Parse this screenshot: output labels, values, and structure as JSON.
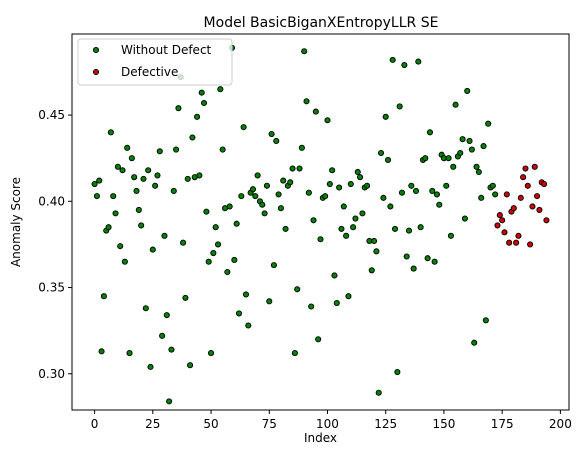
{
  "chart_data": {
    "type": "scatter",
    "title": "Model BasicBiganXEntropyLLR SE",
    "xlabel": "Index",
    "ylabel": "Anomaly Score",
    "xlim": [
      -9.7,
      203.7
    ],
    "ylim": [
      0.279,
      0.497
    ],
    "xticks": [
      0,
      25,
      50,
      75,
      100,
      125,
      150,
      175,
      200
    ],
    "yticks": [
      0.3,
      0.35,
      0.4,
      0.45
    ],
    "xtick_labels": [
      "0",
      "25",
      "50",
      "75",
      "100",
      "125",
      "150",
      "175",
      "200"
    ],
    "ytick_labels": [
      "0.30",
      "0.35",
      "0.40",
      "0.45"
    ],
    "grid": false,
    "legend_position": "top-left",
    "series": [
      {
        "name": "Without Defect",
        "color": "#008000",
        "points": [
          [
            0,
            0.41
          ],
          [
            1,
            0.403
          ],
          [
            2,
            0.412
          ],
          [
            3,
            0.313
          ],
          [
            4,
            0.345
          ],
          [
            5,
            0.383
          ],
          [
            6,
            0.385
          ],
          [
            7,
            0.44
          ],
          [
            8,
            0.403
          ],
          [
            9,
            0.393
          ],
          [
            10,
            0.42
          ],
          [
            11,
            0.374
          ],
          [
            12,
            0.418
          ],
          [
            13,
            0.365
          ],
          [
            14,
            0.431
          ],
          [
            15,
            0.312
          ],
          [
            16,
            0.425
          ],
          [
            17,
            0.414
          ],
          [
            18,
            0.406
          ],
          [
            19,
            0.395
          ],
          [
            20,
            0.386
          ],
          [
            21,
            0.413
          ],
          [
            22,
            0.338
          ],
          [
            23,
            0.418
          ],
          [
            24,
            0.304
          ],
          [
            25,
            0.372
          ],
          [
            26,
            0.409
          ],
          [
            27,
            0.415
          ],
          [
            28,
            0.429
          ],
          [
            29,
            0.322
          ],
          [
            30,
            0.38
          ],
          [
            31,
            0.334
          ],
          [
            32,
            0.284
          ],
          [
            33,
            0.314
          ],
          [
            34,
            0.406
          ],
          [
            35,
            0.43
          ],
          [
            36,
            0.454
          ],
          [
            37,
            0.472
          ],
          [
            38,
            0.376
          ],
          [
            39,
            0.344
          ],
          [
            40,
            0.413
          ],
          [
            41,
            0.305
          ],
          [
            42,
            0.437
          ],
          [
            43,
            0.414
          ],
          [
            44,
            0.449
          ],
          [
            45,
            0.415
          ],
          [
            46,
            0.463
          ],
          [
            47,
            0.457
          ],
          [
            48,
            0.394
          ],
          [
            49,
            0.365
          ],
          [
            50,
            0.312
          ],
          [
            51,
            0.37
          ],
          [
            52,
            0.385
          ],
          [
            53,
            0.375
          ],
          [
            54,
            0.465
          ],
          [
            55,
            0.43
          ],
          [
            56,
            0.396
          ],
          [
            57,
            0.359
          ],
          [
            58,
            0.397
          ],
          [
            59,
            0.489
          ],
          [
            60,
            0.366
          ],
          [
            61,
            0.387
          ],
          [
            62,
            0.335
          ],
          [
            63,
            0.403
          ],
          [
            64,
            0.443
          ],
          [
            65,
            0.346
          ],
          [
            66,
            0.328
          ],
          [
            67,
            0.405
          ],
          [
            68,
            0.407
          ],
          [
            69,
            0.403
          ],
          [
            70,
            0.415
          ],
          [
            71,
            0.4
          ],
          [
            72,
            0.398
          ],
          [
            73,
            0.393
          ],
          [
            74,
            0.409
          ],
          [
            75,
            0.342
          ],
          [
            76,
            0.439
          ],
          [
            77,
            0.363
          ],
          [
            78,
            0.435
          ],
          [
            79,
            0.404
          ],
          [
            80,
            0.396
          ],
          [
            81,
            0.412
          ],
          [
            82,
            0.384
          ],
          [
            83,
            0.409
          ],
          [
            84,
            0.411
          ],
          [
            85,
            0.419
          ],
          [
            86,
            0.312
          ],
          [
            87,
            0.349
          ],
          [
            88,
            0.419
          ],
          [
            89,
            0.431
          ],
          [
            90,
            0.487
          ],
          [
            91,
            0.458
          ],
          [
            92,
            0.405
          ],
          [
            93,
            0.339
          ],
          [
            94,
            0.389
          ],
          [
            95,
            0.452
          ],
          [
            96,
            0.32
          ],
          [
            97,
            0.378
          ],
          [
            98,
            0.402
          ],
          [
            99,
            0.403
          ],
          [
            100,
            0.447
          ],
          [
            101,
            0.41
          ],
          [
            102,
            0.418
          ],
          [
            103,
            0.357
          ],
          [
            104,
            0.341
          ],
          [
            105,
            0.408
          ],
          [
            106,
            0.384
          ],
          [
            107,
            0.397
          ],
          [
            108,
            0.38
          ],
          [
            109,
            0.345
          ],
          [
            110,
            0.41
          ],
          [
            111,
            0.385
          ],
          [
            112,
            0.39
          ],
          [
            113,
            0.417
          ],
          [
            114,
            0.414
          ],
          [
            115,
            0.393
          ],
          [
            116,
            0.408
          ],
          [
            117,
            0.409
          ],
          [
            118,
            0.377
          ],
          [
            119,
            0.36
          ],
          [
            120,
            0.377
          ],
          [
            121,
            0.371
          ],
          [
            122,
            0.289
          ],
          [
            123,
            0.428
          ],
          [
            124,
            0.402
          ],
          [
            125,
            0.449
          ],
          [
            126,
            0.424
          ],
          [
            127,
            0.397
          ],
          [
            128,
            0.482
          ],
          [
            129,
            0.384
          ],
          [
            130,
            0.301
          ],
          [
            131,
            0.455
          ],
          [
            132,
            0.405
          ],
          [
            133,
            0.479
          ],
          [
            134,
            0.368
          ],
          [
            135,
            0.383
          ],
          [
            136,
            0.409
          ],
          [
            137,
            0.361
          ],
          [
            138,
            0.406
          ],
          [
            139,
            0.481
          ],
          [
            140,
            0.385
          ],
          [
            141,
            0.424
          ],
          [
            142,
            0.425
          ],
          [
            143,
            0.367
          ],
          [
            144,
            0.44
          ],
          [
            145,
            0.406
          ],
          [
            146,
            0.365
          ],
          [
            147,
            0.404
          ],
          [
            148,
            0.398
          ],
          [
            149,
            0.427
          ],
          [
            150,
            0.425
          ],
          [
            151,
            0.409
          ],
          [
            152,
            0.425
          ],
          [
            153,
            0.38
          ],
          [
            154,
            0.42
          ],
          [
            155,
            0.456
          ],
          [
            156,
            0.426
          ],
          [
            157,
            0.428
          ],
          [
            158,
            0.436
          ],
          [
            159,
            0.39
          ],
          [
            160,
            0.464
          ],
          [
            161,
            0.435
          ],
          [
            162,
            0.43
          ],
          [
            163,
            0.318
          ],
          [
            164,
            0.42
          ],
          [
            165,
            0.417
          ],
          [
            166,
            0.402
          ],
          [
            167,
            0.432
          ],
          [
            168,
            0.331
          ],
          [
            169,
            0.445
          ],
          [
            170,
            0.408
          ],
          [
            171,
            0.409
          ],
          [
            172,
            0.404
          ]
        ]
      },
      {
        "name": "Defective",
        "color": "#cc0000",
        "points": [
          [
            173,
            0.386
          ],
          [
            174,
            0.392
          ],
          [
            175,
            0.389
          ],
          [
            176,
            0.382
          ],
          [
            177,
            0.404
          ],
          [
            178,
            0.376
          ],
          [
            179,
            0.394
          ],
          [
            180,
            0.396
          ],
          [
            181,
            0.376
          ],
          [
            182,
            0.38
          ],
          [
            183,
            0.402
          ],
          [
            184,
            0.414
          ],
          [
            185,
            0.419
          ],
          [
            186,
            0.409
          ],
          [
            187,
            0.375
          ],
          [
            188,
            0.397
          ],
          [
            189,
            0.42
          ],
          [
            190,
            0.403
          ],
          [
            191,
            0.395
          ],
          [
            192,
            0.411
          ],
          [
            193,
            0.41
          ],
          [
            194,
            0.389
          ]
        ]
      }
    ]
  }
}
